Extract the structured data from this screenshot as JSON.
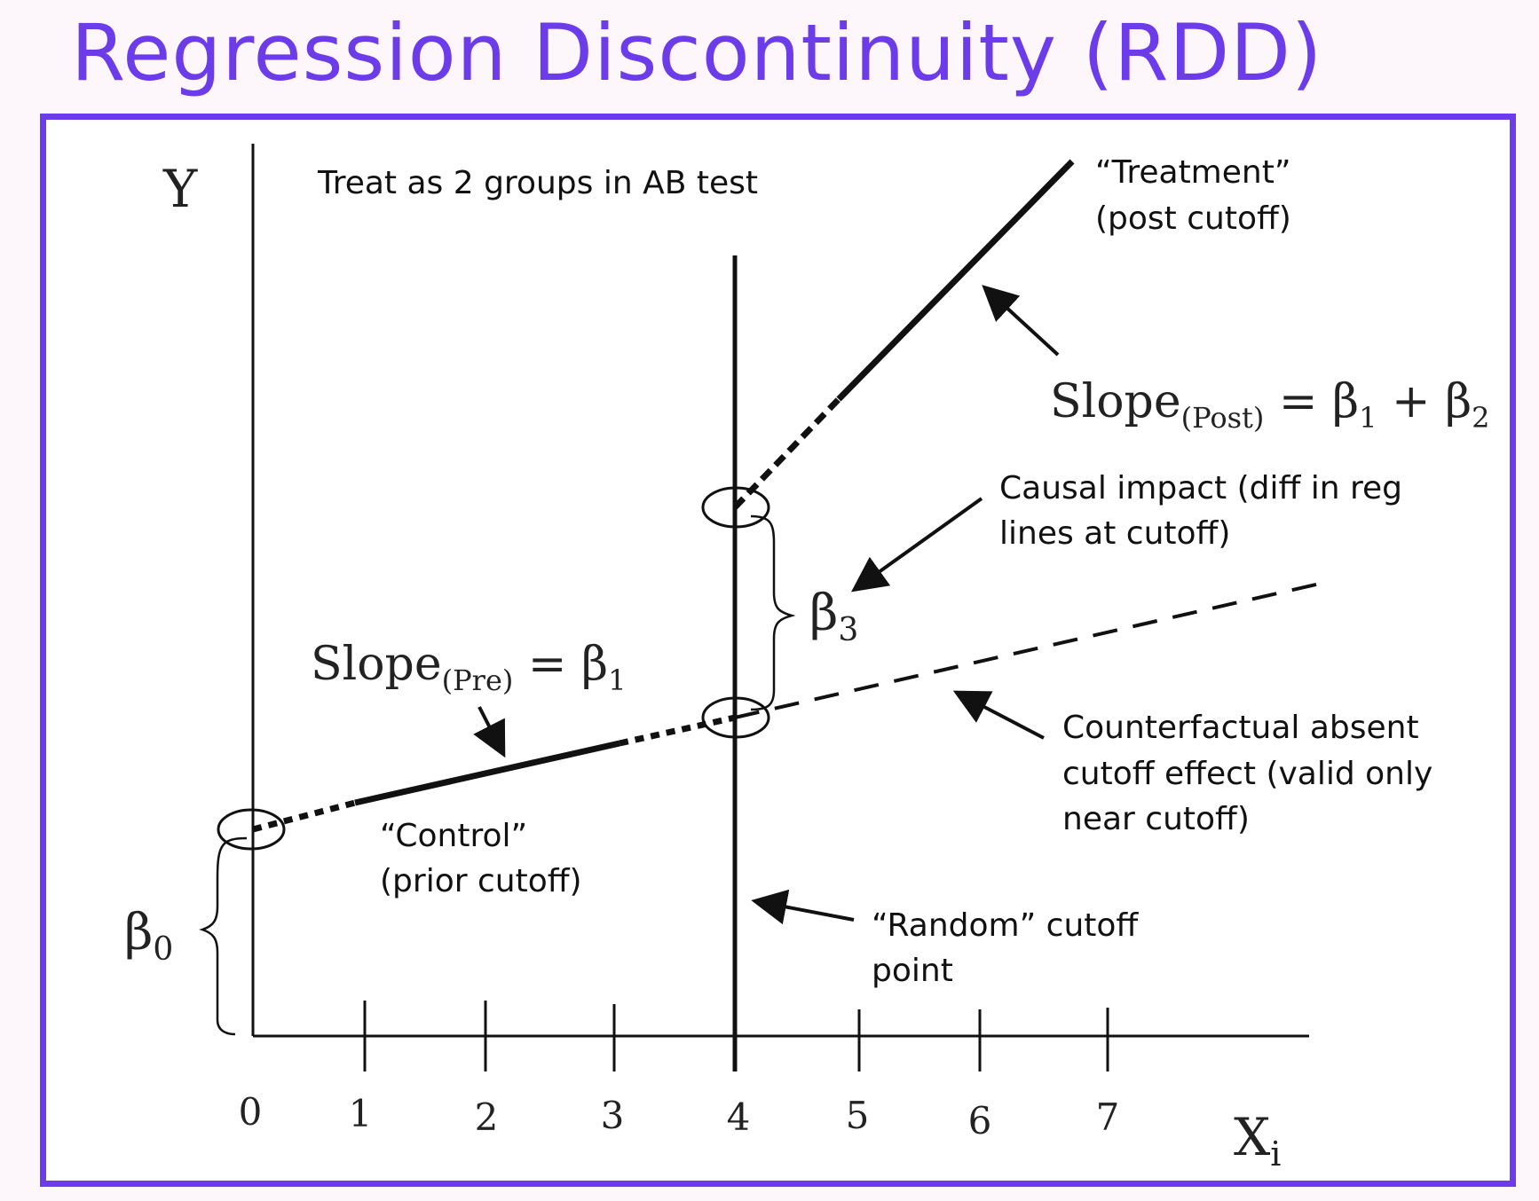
{
  "title": "Regression Discontinuity (RDD)",
  "axes": {
    "y_label": "Y",
    "x_label_main": "X",
    "x_label_sub": "i",
    "x_ticks": [
      "0",
      "1",
      "2",
      "3",
      "4",
      "5",
      "6",
      "7"
    ]
  },
  "notes": {
    "top_note": "Treat as 2 groups in AB test",
    "treatment_line1": "“Treatment”",
    "treatment_line2": "(post cutoff)",
    "control_line1": "“Control”",
    "control_line2": "(prior cutoff)",
    "causal_line1": "Causal impact (diff in reg",
    "causal_line2": "lines at cutoff)",
    "counterfactual_line1": "Counterfactual absent",
    "counterfactual_line2": "cutoff effect (valid only",
    "counterfactual_line3": "near cutoff)",
    "cutoff_line1": "“Random” cutoff",
    "cutoff_line2": "point"
  },
  "formulas": {
    "slope_word": "Slope",
    "slope_post_sub": "(Post)",
    "slope_post_rhs_a": " = β",
    "slope_post_rhs_a_sub": "1",
    "slope_post_rhs_b": " + β",
    "slope_post_rhs_b_sub": "2",
    "slope_pre_sub": "(Pre)",
    "slope_pre_rhs": " = β",
    "slope_pre_rhs_sub": "1",
    "beta": "β",
    "beta0_sub": "0",
    "beta3_sub": "3"
  },
  "colors": {
    "accent": "#6c3bea",
    "ink": "#111111",
    "frame_bg": "#ffffff",
    "page_bg": "#fdf7fb"
  }
}
